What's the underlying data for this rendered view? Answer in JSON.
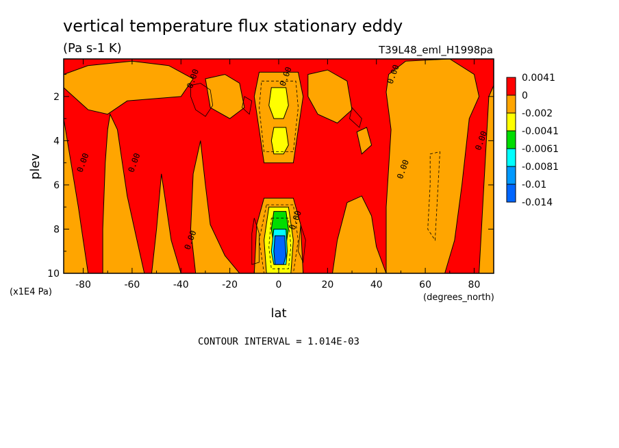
{
  "chart_data": {
    "type": "heatmap",
    "title": "vertical temperature flux stationary eddy",
    "subtitle": "(Pa s-1 K)",
    "run_label": "T39L48_eml_H1998pa",
    "xlabel": "lat",
    "x_units": "(degrees_north)",
    "ylabel": "plev",
    "y_units": "(x1E4 Pa)",
    "xlim": [
      -88,
      88
    ],
    "ylim": [
      10,
      0.3
    ],
    "x_ticks": [
      -80,
      -60,
      -40,
      -20,
      0,
      20,
      40,
      60,
      80
    ],
    "x_tick_labels": [
      "-80",
      "-60",
      "-40",
      "-20",
      "0",
      "20",
      "40",
      "60",
      "80"
    ],
    "y_ticks": [
      2,
      4,
      6,
      8,
      10
    ],
    "y_tick_labels": [
      "2",
      "4",
      "6",
      "8",
      "10"
    ],
    "contour_interval_text": "CONTOUR INTERVAL = 1.014E-03",
    "contour_labels": [
      {
        "text": "0.00",
        "lat": -35,
        "plev": 1.2
      },
      {
        "text": "0.00",
        "lat": 3,
        "plev": 1.1
      },
      {
        "text": "0.00",
        "lat": 47,
        "plev": 1.0
      },
      {
        "text": "0.00",
        "lat": -80,
        "plev": 5.0
      },
      {
        "text": "0.00",
        "lat": -59,
        "plev": 5.0
      },
      {
        "text": "0.00",
        "lat": 51,
        "plev": 5.3
      },
      {
        "text": "0.00",
        "lat": 83,
        "plev": 4.0
      },
      {
        "text": "0.00",
        "lat": -36,
        "plev": 8.5
      },
      {
        "text": "0.00",
        "lat": 7,
        "plev": 7.6
      }
    ],
    "legend": {
      "placement": "right",
      "levels": [
        {
          "label": "0.0041",
          "color": "#ff0000"
        },
        {
          "label": "0",
          "color": "#ffa500"
        },
        {
          "label": "-0.002",
          "color": "#ffff00"
        },
        {
          "label": "-0.0041",
          "color": "#00dd00"
        },
        {
          "label": "-0.0061",
          "color": "#00ffff"
        },
        {
          "label": "-0.0081",
          "color": "#0099ff"
        },
        {
          "label": "-0.01",
          "color": "#0066ff"
        },
        {
          "label": "-0.014",
          "color": ""
        }
      ]
    },
    "colors": {
      "positive": "#ff0000",
      "zero_band": "#ffa500",
      "weak_negative": "#ffff00",
      "moderate_negative": "#00dd00",
      "strong_negative": "#00ffff",
      "stronger_negative": "#0099ff",
      "strongest_negative": "#0066ff"
    },
    "regions": {
      "orange": [
        [
          [
            -88,
            1.0
          ],
          [
            -78,
            0.6
          ],
          [
            -60,
            0.4
          ],
          [
            -45,
            0.6
          ],
          [
            -35,
            1.2
          ],
          [
            -40,
            2.0
          ],
          [
            -62,
            2.2
          ],
          [
            -70,
            2.8
          ],
          [
            -78,
            2.6
          ],
          [
            -86,
            1.8
          ],
          [
            -88,
            1.6
          ]
        ],
        [
          [
            -88,
            3.0
          ],
          [
            -85,
            5.0
          ],
          [
            -82,
            7.0
          ],
          [
            -80,
            8.5
          ],
          [
            -78,
            10
          ],
          [
            -88,
            10
          ]
        ],
        [
          [
            -69,
            2.8
          ],
          [
            -66,
            3.5
          ],
          [
            -64,
            5.0
          ],
          [
            -62,
            6.5
          ],
          [
            -58,
            8.5
          ],
          [
            -55,
            10
          ],
          [
            -72,
            10
          ],
          [
            -72,
            8.0
          ],
          [
            -71,
            5.0
          ],
          [
            -70,
            3.5
          ]
        ],
        [
          [
            -48,
            5.5
          ],
          [
            -46,
            7.0
          ],
          [
            -44,
            8.5
          ],
          [
            -40,
            10
          ],
          [
            -52,
            10
          ],
          [
            -50,
            8.0
          ]
        ],
        [
          [
            -32,
            4.0
          ],
          [
            -30,
            6.0
          ],
          [
            -28,
            7.8
          ],
          [
            -22,
            9.2
          ],
          [
            -16,
            10
          ],
          [
            -34,
            10
          ],
          [
            -36,
            8.0
          ],
          [
            -35,
            5.5
          ]
        ],
        [
          [
            -30,
            1.2
          ],
          [
            -22,
            1.0
          ],
          [
            -16,
            1.4
          ],
          [
            -14,
            2.5
          ],
          [
            -20,
            3.0
          ],
          [
            -28,
            2.5
          ]
        ],
        [
          [
            -8,
            0.9
          ],
          [
            8,
            0.9
          ],
          [
            10,
            2.0
          ],
          [
            8,
            3.5
          ],
          [
            6,
            5.0
          ],
          [
            -6,
            5.0
          ],
          [
            -8,
            3.5
          ],
          [
            -10,
            2.0
          ]
        ],
        [
          [
            -6,
            6.6
          ],
          [
            6,
            6.6
          ],
          [
            9,
            7.8
          ],
          [
            10,
            10
          ],
          [
            -10,
            10
          ],
          [
            -9,
            7.8
          ]
        ],
        [
          [
            12,
            1.0
          ],
          [
            20,
            0.8
          ],
          [
            28,
            1.3
          ],
          [
            30,
            2.6
          ],
          [
            24,
            3.2
          ],
          [
            16,
            2.8
          ],
          [
            12,
            2.0
          ]
        ],
        [
          [
            32,
            3.6
          ],
          [
            36,
            3.4
          ],
          [
            38,
            4.2
          ],
          [
            34,
            4.6
          ]
        ],
        [
          [
            28,
            6.8
          ],
          [
            34,
            6.5
          ],
          [
            38,
            7.4
          ],
          [
            40,
            8.8
          ],
          [
            44,
            10
          ],
          [
            22,
            10
          ],
          [
            24,
            8.5
          ]
        ],
        [
          [
            45,
            1.0
          ],
          [
            52,
            0.4
          ],
          [
            70,
            0.3
          ],
          [
            80,
            1.0
          ],
          [
            82,
            2.0
          ],
          [
            78,
            3.0
          ],
          [
            75,
            6.0
          ],
          [
            72,
            8.5
          ],
          [
            68,
            10
          ],
          [
            44,
            10
          ],
          [
            44,
            7.0
          ],
          [
            46,
            3.5
          ],
          [
            44,
            1.8
          ]
        ],
        [
          [
            86,
            2.0
          ],
          [
            88,
            1.5
          ],
          [
            88,
            10
          ],
          [
            82,
            10
          ],
          [
            84,
            6.0
          ]
        ]
      ],
      "yellow": [
        [
          [
            -3,
            1.6
          ],
          [
            3,
            1.6
          ],
          [
            4,
            2.4
          ],
          [
            2,
            3.0
          ],
          [
            -2,
            3.0
          ],
          [
            -4,
            2.4
          ]
        ],
        [
          [
            -2,
            3.4
          ],
          [
            3,
            3.4
          ],
          [
            4,
            4.2
          ],
          [
            2,
            4.6
          ],
          [
            -2,
            4.6
          ],
          [
            -3,
            4.0
          ]
        ],
        [
          [
            -4,
            7.0
          ],
          [
            4,
            7.0
          ],
          [
            6,
            8.5
          ],
          [
            5,
            10
          ],
          [
            -5,
            10
          ],
          [
            -6,
            8.5
          ]
        ]
      ],
      "green": [
        [
          [
            -2,
            7.2
          ],
          [
            3,
            7.2
          ],
          [
            4,
            8.0
          ],
          [
            3,
            8.7
          ],
          [
            -2,
            8.7
          ],
          [
            -3,
            8.0
          ]
        ]
      ],
      "cyan": [
        [
          [
            -2,
            8.0
          ],
          [
            3,
            8.0
          ],
          [
            3.5,
            9.0
          ],
          [
            3,
            9.6
          ],
          [
            -2,
            9.6
          ],
          [
            -3,
            9.0
          ]
        ]
      ],
      "blue": [
        [
          [
            -1.5,
            8.3
          ],
          [
            2.5,
            8.3
          ],
          [
            3,
            9.2
          ],
          [
            2,
            9.6
          ],
          [
            -1.5,
            9.6
          ],
          [
            -2,
            9.0
          ]
        ]
      ]
    },
    "contours": {
      "solid": [
        [
          [
            -36,
            1.5
          ],
          [
            -32,
            1.4
          ],
          [
            -28,
            1.7
          ],
          [
            -27,
            2.4
          ],
          [
            -30,
            2.9
          ],
          [
            -34,
            2.6
          ],
          [
            -36,
            2.0
          ]
        ],
        [
          [
            -14,
            2.0
          ],
          [
            -11,
            2.2
          ],
          [
            -12,
            2.8
          ],
          [
            -15,
            2.5
          ]
        ],
        [
          [
            30,
            2.5
          ],
          [
            34,
            3.0
          ],
          [
            33,
            3.4
          ],
          [
            29,
            3.0
          ]
        ],
        [
          [
            -10,
            7.5
          ],
          [
            -8,
            8.2
          ],
          [
            -8,
            9.5
          ],
          [
            -11,
            9.6
          ],
          [
            -11,
            8.2
          ]
        ],
        [
          [
            9,
            7.8
          ],
          [
            11,
            8.5
          ],
          [
            10,
            9.5
          ],
          [
            8,
            9.0
          ]
        ]
      ],
      "dashed": [
        [
          [
            -7,
            1.3
          ],
          [
            7,
            1.3
          ],
          [
            8,
            2.5
          ],
          [
            6,
            4.5
          ],
          [
            -6,
            4.5
          ],
          [
            -8,
            2.5
          ]
        ],
        [
          [
            -5,
            6.9
          ],
          [
            6,
            6.9
          ],
          [
            8,
            8.5
          ],
          [
            6,
            10
          ],
          [
            -6,
            10
          ],
          [
            -8,
            8.5
          ]
        ],
        [
          [
            -3,
            7.5
          ],
          [
            4,
            7.5
          ],
          [
            5,
            8.8
          ],
          [
            4,
            9.8
          ],
          [
            -3,
            9.8
          ],
          [
            -4,
            8.8
          ]
        ],
        [
          [
            62,
            4.6
          ],
          [
            66,
            4.5
          ],
          [
            65,
            6.5
          ],
          [
            64,
            8.5
          ],
          [
            61,
            8.0
          ],
          [
            62,
            6.0
          ]
        ]
      ]
    }
  }
}
